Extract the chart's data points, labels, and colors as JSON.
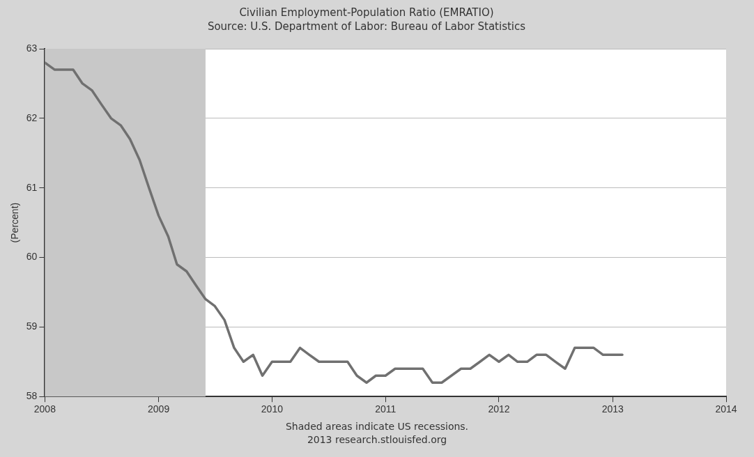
{
  "chart_data": {
    "type": "line",
    "title": "Civilian Employment-Population Ratio (EMRATIO)",
    "subtitle": "Source: U.S. Department of Labor: Bureau of Labor Statistics",
    "ylabel": "(Percent)",
    "x": [
      "2008-01",
      "2008-02",
      "2008-03",
      "2008-04",
      "2008-05",
      "2008-06",
      "2008-07",
      "2008-08",
      "2008-09",
      "2008-10",
      "2008-11",
      "2008-12",
      "2009-01",
      "2009-02",
      "2009-03",
      "2009-04",
      "2009-05",
      "2009-06",
      "2009-07",
      "2009-08",
      "2009-09",
      "2009-10",
      "2009-11",
      "2009-12",
      "2010-01",
      "2010-02",
      "2010-03",
      "2010-04",
      "2010-05",
      "2010-06",
      "2010-07",
      "2010-08",
      "2010-09",
      "2010-10",
      "2010-11",
      "2010-12",
      "2011-01",
      "2011-02",
      "2011-03",
      "2011-04",
      "2011-05",
      "2011-06",
      "2011-07",
      "2011-08",
      "2011-09",
      "2011-10",
      "2011-11",
      "2011-12",
      "2012-01",
      "2012-02",
      "2012-03",
      "2012-04",
      "2012-05",
      "2012-06",
      "2012-07",
      "2012-08",
      "2012-09",
      "2012-10",
      "2012-11",
      "2012-12",
      "2013-01",
      "2013-02"
    ],
    "series": [
      {
        "color": "#707070",
        "values": [
          62.8,
          62.7,
          62.7,
          62.7,
          62.5,
          62.4,
          62.2,
          62.0,
          61.9,
          61.7,
          61.4,
          61.0,
          60.6,
          60.3,
          59.9,
          59.8,
          59.6,
          59.4,
          59.3,
          59.1,
          58.7,
          58.5,
          58.6,
          58.3,
          58.5,
          58.5,
          58.5,
          58.7,
          58.6,
          58.5,
          58.5,
          58.5,
          58.5,
          58.3,
          58.2,
          58.3,
          58.3,
          58.4,
          58.4,
          58.4,
          58.4,
          58.2,
          58.2,
          58.3,
          58.4,
          58.4,
          58.5,
          58.6,
          58.5,
          58.6,
          58.5,
          58.5,
          58.6,
          58.6,
          58.5,
          58.4,
          58.7,
          58.7,
          58.7,
          58.6,
          58.6,
          58.6
        ]
      }
    ],
    "xlim": [
      "2008-01",
      "2014-01"
    ],
    "xticks": [
      {
        "value": "2008-01",
        "label": "2008"
      },
      {
        "value": "2009-01",
        "label": "2009"
      },
      {
        "value": "2010-01",
        "label": "2010"
      },
      {
        "value": "2011-01",
        "label": "2011"
      },
      {
        "value": "2012-01",
        "label": "2012"
      },
      {
        "value": "2013-01",
        "label": "2013"
      },
      {
        "value": "2014-01",
        "label": "2014"
      }
    ],
    "ylim": [
      58,
      63
    ],
    "yticks": [
      58,
      59,
      60,
      61,
      62,
      63
    ],
    "grid": "y",
    "legend": false,
    "marker": "none",
    "line_style": "solid",
    "bands": [
      {
        "axis": "x",
        "from": "2008-01",
        "to": "2009-06",
        "color": "#c8c8c8"
      }
    ],
    "annotations": [
      "Shaded areas indicate US recessions.",
      "2013 research.stlouisfed.org"
    ]
  }
}
